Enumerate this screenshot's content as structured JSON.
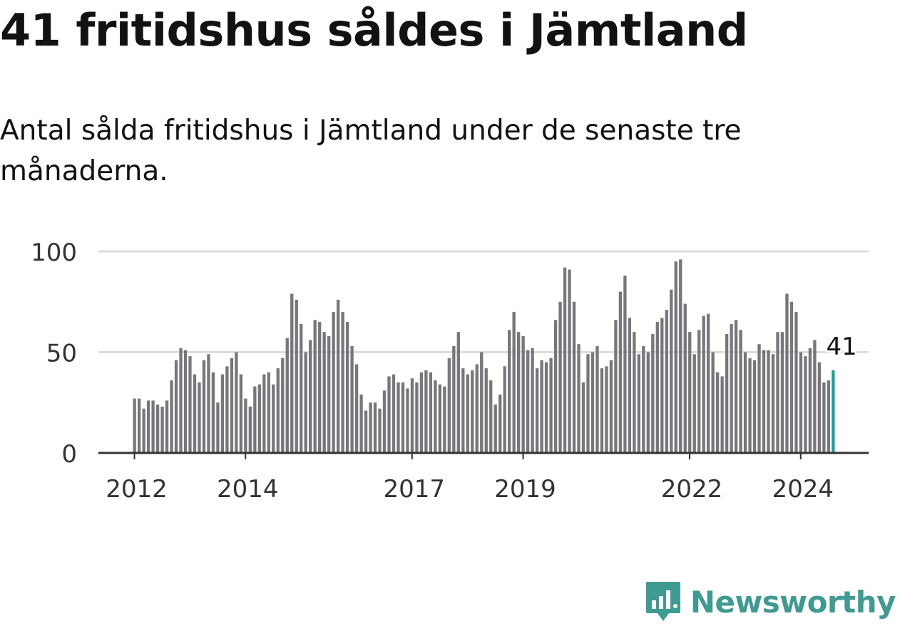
{
  "title": "41 fritidshus såldes i Jämtland",
  "subtitle": "Antal sålda fritidshus i Jämtland under de senaste tre månaderna.",
  "brand": "Newsworthy",
  "colors": {
    "bar": "#77767b",
    "highlight": "#0fa39a",
    "grid": "#dddddd",
    "axis": "#333333",
    "text": "#333333",
    "brand": "#3f9a91"
  },
  "chart_data": {
    "type": "bar",
    "start": "2012-01",
    "frequency": "monthly",
    "ylim": [
      0,
      100
    ],
    "yticks": [
      0,
      50,
      100
    ],
    "xticks": [
      {
        "label": "2012",
        "index": 0
      },
      {
        "label": "2014",
        "index": 24
      },
      {
        "label": "2017",
        "index": 60
      },
      {
        "label": "2019",
        "index": 84
      },
      {
        "label": "2022",
        "index": 120
      },
      {
        "label": "2024",
        "index": 144
      }
    ],
    "values": [
      27,
      27,
      22,
      26,
      26,
      24,
      23,
      26,
      36,
      46,
      52,
      51,
      48,
      39,
      35,
      46,
      49,
      40,
      25,
      39,
      43,
      47,
      50,
      39,
      27,
      23,
      33,
      34,
      39,
      40,
      34,
      42,
      47,
      57,
      79,
      76,
      64,
      50,
      56,
      66,
      65,
      60,
      58,
      70,
      76,
      70,
      65,
      53,
      44,
      29,
      21,
      25,
      25,
      22,
      31,
      38,
      39,
      35,
      35,
      32,
      37,
      35,
      40,
      41,
      40,
      36,
      34,
      33,
      47,
      53,
      60,
      42,
      39,
      41,
      44,
      50,
      42,
      36,
      24,
      29,
      43,
      61,
      70,
      60,
      58,
      51,
      52,
      42,
      46,
      45,
      47,
      66,
      75,
      92,
      91,
      75,
      54,
      35,
      49,
      50,
      53,
      42,
      43,
      46,
      66,
      80,
      88,
      67,
      60,
      49,
      53,
      50,
      59,
      65,
      67,
      71,
      81,
      95,
      96,
      74,
      60,
      49,
      61,
      68,
      69,
      50,
      40,
      38,
      59,
      64,
      66,
      61,
      50,
      47,
      46,
      54,
      51,
      51,
      49,
      60,
      60,
      79,
      75,
      70,
      50,
      48,
      52,
      56,
      45,
      35,
      36,
      41
    ],
    "highlight_last": true,
    "annotation": {
      "label": "41",
      "index": 151
    }
  }
}
